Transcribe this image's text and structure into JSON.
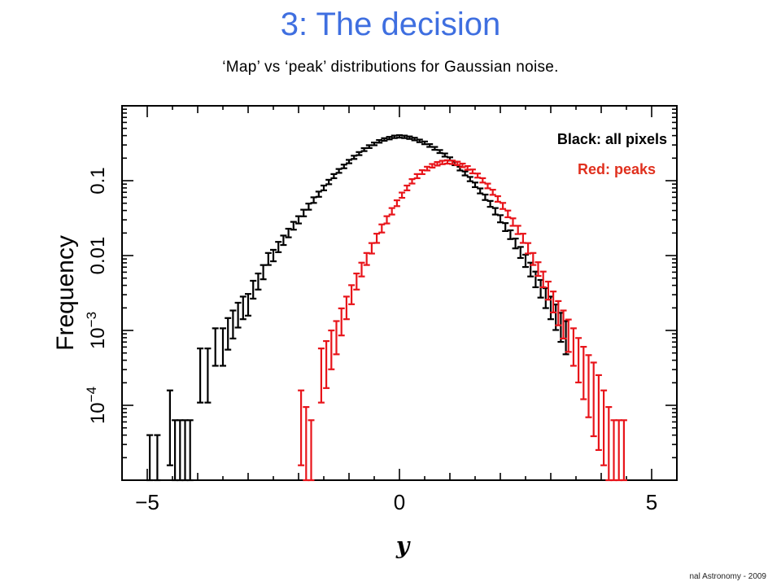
{
  "slide": {
    "title": "3: The decision",
    "subtitle": "‘Map’ vs ‘peak’ distributions for Gaussian noise.",
    "footer": "nal Astronomy - 2009"
  },
  "chart_data": {
    "type": "scatter",
    "xlabel": "y",
    "ylabel": "Frequency",
    "x_ticks": [
      -5,
      0,
      5
    ],
    "x_tick_labels": [
      "−5",
      "0",
      "5"
    ],
    "xlim": [
      -5.5,
      5.5
    ],
    "y_scale": "log",
    "ylim": [
      1e-05,
      1
    ],
    "y_ticks": [
      0.0001,
      0.001,
      0.01,
      0.1
    ],
    "y_tick_labels": [
      "10^-4",
      "10^-3",
      "0.01",
      "0.1"
    ],
    "legend_placement": "top-right",
    "series": [
      {
        "name": "Black: all pixels",
        "color": "#000000",
        "error_bars": true,
        "x": [
          -4.95,
          -4.8,
          -4.55,
          -4.45,
          -4.35,
          -4.25,
          -4.15,
          -3.95,
          -3.8,
          -3.65,
          -3.5,
          -3.4,
          -3.3,
          -3.2,
          -3.1,
          -3.0,
          -2.9,
          -2.8,
          -2.7,
          -2.6,
          -2.5,
          -2.4,
          -2.3,
          -2.2,
          -2.1,
          -2.0,
          -1.9,
          -1.8,
          -1.7,
          -1.6,
          -1.5,
          -1.4,
          -1.3,
          -1.2,
          -1.1,
          -1.0,
          -0.9,
          -0.8,
          -0.7,
          -0.6,
          -0.5,
          -0.4,
          -0.3,
          -0.2,
          -0.1,
          0.0,
          0.1,
          0.2,
          0.3,
          0.4,
          0.5,
          0.6,
          0.7,
          0.8,
          0.9,
          1.0,
          1.1,
          1.2,
          1.3,
          1.4,
          1.5,
          1.6,
          1.7,
          1.8,
          1.9,
          2.0,
          2.1,
          2.2,
          2.3,
          2.4,
          2.5,
          2.6,
          2.7,
          2.8,
          2.9,
          3.0,
          3.1,
          3.2,
          3.3
        ],
        "y": [
          1e-05,
          1e-05,
          5e-05,
          2e-05,
          2e-05,
          2e-05,
          2e-05,
          0.00025,
          0.00025,
          0.0006,
          0.0006,
          0.0009,
          0.0012,
          0.0016,
          0.002,
          0.0022,
          0.0035,
          0.0045,
          0.006,
          0.009,
          0.01,
          0.013,
          0.016,
          0.02,
          0.025,
          0.03,
          0.037,
          0.045,
          0.055,
          0.066,
          0.08,
          0.096,
          0.115,
          0.135,
          0.155,
          0.18,
          0.205,
          0.23,
          0.26,
          0.285,
          0.31,
          0.335,
          0.355,
          0.37,
          0.385,
          0.39,
          0.385,
          0.375,
          0.36,
          0.34,
          0.32,
          0.295,
          0.27,
          0.245,
          0.22,
          0.195,
          0.17,
          0.145,
          0.125,
          0.105,
          0.088,
          0.073,
          0.06,
          0.049,
          0.039,
          0.031,
          0.024,
          0.019,
          0.0145,
          0.011,
          0.0085,
          0.0065,
          0.0048,
          0.0036,
          0.0027,
          0.002,
          0.0015,
          0.0011,
          0.0008
        ]
      },
      {
        "name": "Red: peaks",
        "color": "#e8141a",
        "error_bars": true,
        "x": [
          -1.95,
          -1.85,
          -1.75,
          -1.55,
          -1.45,
          -1.35,
          -1.25,
          -1.15,
          -1.05,
          -0.95,
          -0.85,
          -0.75,
          -0.65,
          -0.55,
          -0.45,
          -0.35,
          -0.25,
          -0.15,
          -0.05,
          0.05,
          0.15,
          0.25,
          0.35,
          0.45,
          0.55,
          0.65,
          0.75,
          0.85,
          0.95,
          1.05,
          1.15,
          1.25,
          1.35,
          1.45,
          1.55,
          1.65,
          1.75,
          1.85,
          1.95,
          2.05,
          2.15,
          2.25,
          2.35,
          2.45,
          2.55,
          2.65,
          2.75,
          2.85,
          2.95,
          3.05,
          3.15,
          3.25,
          3.35,
          3.45,
          3.55,
          3.65,
          3.75,
          3.85,
          3.95,
          4.05,
          4.15,
          4.25,
          4.35,
          4.45
        ],
        "y": [
          5e-05,
          3e-05,
          2e-05,
          0.00025,
          0.00035,
          0.00055,
          0.0008,
          0.0013,
          0.002,
          0.003,
          0.0045,
          0.0065,
          0.009,
          0.0125,
          0.017,
          0.023,
          0.03,
          0.039,
          0.05,
          0.064,
          0.08,
          0.098,
          0.115,
          0.13,
          0.145,
          0.158,
          0.168,
          0.175,
          0.178,
          0.176,
          0.17,
          0.16,
          0.148,
          0.133,
          0.117,
          0.101,
          0.085,
          0.07,
          0.057,
          0.046,
          0.036,
          0.028,
          0.022,
          0.017,
          0.0125,
          0.009,
          0.0066,
          0.0048,
          0.0034,
          0.0024,
          0.0017,
          0.0012,
          0.00085,
          0.0006,
          0.0004,
          0.00027,
          0.00018,
          0.00012,
          8e-05,
          5e-05,
          3e-05,
          2e-05,
          2e-05,
          2e-05
        ]
      }
    ]
  }
}
